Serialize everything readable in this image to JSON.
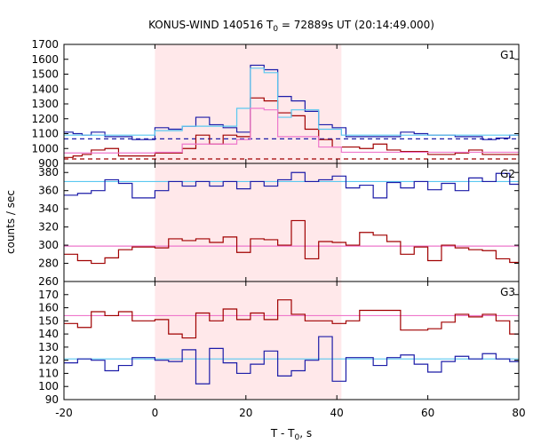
{
  "chart_data": {
    "type": "line",
    "title": {
      "main": "KONUS-WIND 140516 T",
      "sub": "0",
      "tail": " = 72889s UT (20:14:49.000)"
    },
    "xlabel": {
      "main": "T - T",
      "sub": "0",
      "tail": ", s"
    },
    "ylabel": "counts / sec",
    "xlim": [
      -20,
      80
    ],
    "x_ticks": [
      "-20",
      "0",
      "20",
      "40",
      "60",
      "80"
    ],
    "x_tick_values": [
      -20,
      0,
      20,
      40,
      60,
      80
    ],
    "shaded_interval": [
      0,
      41
    ],
    "colors": {
      "red": "#a00000",
      "blue": "#1c1ca8",
      "light_blue": "#5ac8f0",
      "pink": "#ee77cc",
      "shade": "#ffe8ea"
    },
    "panels": [
      {
        "label": "G1",
        "ylim": [
          900,
          1700
        ],
        "y_ticks": [
          "1700",
          "1600",
          "1500",
          "1400",
          "1300",
          "1200",
          "1100",
          "1000",
          "900"
        ],
        "y_tick_values": [
          1700,
          1600,
          1500,
          1400,
          1300,
          1200,
          1100,
          1000,
          900
        ],
        "series": [
          {
            "color": "blue",
            "x": [
              -20,
              -18,
              -16,
              -14,
              -11,
              -8,
              -5,
              0,
              3,
              6,
              9,
              12,
              15,
              18,
              21,
              24,
              27,
              30,
              33,
              36,
              39,
              42,
              45,
              48,
              51,
              54,
              57,
              60,
              63,
              66,
              69,
              72,
              75,
              78,
              80
            ],
            "y": [
              1110,
              1100,
              1090,
              1110,
              1080,
              1080,
              1060,
              1140,
              1130,
              1150,
              1210,
              1160,
              1140,
              1110,
              1560,
              1530,
              1350,
              1320,
              1250,
              1160,
              1140,
              1080,
              1080,
              1080,
              1080,
              1110,
              1100,
              1090,
              1090,
              1080,
              1080,
              1060,
              1070,
              1090,
              1090
            ]
          },
          {
            "color": "red",
            "x": [
              -20,
              -18,
              -16,
              -14,
              -11,
              -8,
              -5,
              0,
              3,
              6,
              9,
              12,
              15,
              18,
              21,
              24,
              27,
              30,
              33,
              36,
              39,
              42,
              45,
              48,
              51,
              54,
              57,
              60,
              63,
              66,
              69,
              72,
              75,
              78,
              80
            ],
            "y": [
              940,
              950,
              960,
              990,
              1000,
              950,
              950,
              970,
              970,
              1000,
              1090,
              1030,
              1090,
              1080,
              1340,
              1320,
              1240,
              1220,
              1130,
              1060,
              1010,
              1010,
              1000,
              1030,
              990,
              980,
              980,
              960,
              960,
              970,
              990,
              960,
              960,
              960,
              960
            ]
          },
          {
            "color": "light_blue",
            "x": [
              -20,
              0,
              6,
              18,
              21,
              24,
              27,
              30,
              36,
              41,
              80
            ],
            "y": [
              1090,
              1120,
              1150,
              1270,
              1540,
              1510,
              1210,
              1260,
              1130,
              1090,
              1090
            ]
          },
          {
            "color": "pink",
            "x": [
              -20,
              0,
              6,
              18,
              21,
              24,
              27,
              30,
              36,
              41,
              80
            ],
            "y": [
              970,
              975,
              1030,
              1060,
              1270,
              1260,
              1080,
              1080,
              1010,
              975,
              975
            ]
          }
        ],
        "backgrounds": [
          {
            "color": "blue",
            "y": 1065,
            "dashed": true
          },
          {
            "color": "red",
            "y": 930,
            "dashed": true
          }
        ]
      },
      {
        "label": "G2",
        "ylim": [
          260,
          390
        ],
        "y_ticks": [
          "380",
          "360",
          "340",
          "320",
          "300",
          "280",
          "260"
        ],
        "y_tick_values": [
          380,
          360,
          340,
          320,
          300,
          280,
          260
        ],
        "series": [
          {
            "color": "blue",
            "x": [
              -20,
              -17,
              -14,
              -11,
              -8,
              -5,
              0,
              3,
              6,
              9,
              12,
              15,
              18,
              21,
              24,
              27,
              30,
              33,
              36,
              39,
              42,
              45,
              48,
              51,
              54,
              57,
              60,
              63,
              66,
              69,
              72,
              75,
              78,
              80
            ],
            "y": [
              355,
              357,
              360,
              372,
              368,
              352,
              360,
              370,
              365,
              370,
              365,
              370,
              362,
              370,
              365,
              372,
              380,
              370,
              372,
              376,
              363,
              366,
              352,
              369,
              363,
              370,
              361,
              368,
              360,
              374,
              370,
              379,
              367,
              367
            ]
          },
          {
            "color": "red",
            "x": [
              -20,
              -17,
              -14,
              -11,
              -8,
              -5,
              0,
              3,
              6,
              9,
              12,
              15,
              18,
              21,
              24,
              27,
              30,
              33,
              36,
              39,
              42,
              45,
              48,
              51,
              54,
              57,
              60,
              63,
              66,
              69,
              72,
              75,
              78,
              80
            ],
            "y": [
              290,
              283,
              280,
              286,
              295,
              298,
              297,
              307,
              305,
              307,
              303,
              309,
              292,
              307,
              306,
              300,
              327,
              285,
              304,
              303,
              300,
              314,
              311,
              304,
              290,
              298,
              283,
              300,
              297,
              295,
              294,
              285,
              281,
              281
            ]
          }
        ],
        "backgrounds": [
          {
            "color": "light_blue",
            "y": 370,
            "dashed": false
          },
          {
            "color": "pink",
            "y": 299,
            "dashed": false
          }
        ]
      },
      {
        "label": "G3",
        "ylim": [
          90,
          180
        ],
        "y_ticks": [
          "170",
          "160",
          "150",
          "140",
          "130",
          "120",
          "110",
          "100",
          "90"
        ],
        "y_tick_values": [
          170,
          160,
          150,
          140,
          130,
          120,
          110,
          100,
          90
        ],
        "series": [
          {
            "color": "red",
            "x": [
              -20,
              -17,
              -14,
              -11,
              -8,
              -5,
              0,
              3,
              6,
              9,
              12,
              15,
              18,
              21,
              24,
              27,
              30,
              33,
              36,
              39,
              42,
              45,
              48,
              51,
              54,
              57,
              60,
              63,
              66,
              69,
              72,
              75,
              78,
              80
            ],
            "y": [
              148,
              145,
              157,
              154,
              157,
              150,
              151,
              140,
              137,
              156,
              150,
              159,
              151,
              156,
              151,
              166,
              155,
              150,
              150,
              148,
              150,
              158,
              158,
              158,
              143,
              143,
              144,
              149,
              155,
              153,
              155,
              150,
              140,
              140
            ]
          },
          {
            "color": "blue",
            "x": [
              -20,
              -17,
              -14,
              -11,
              -8,
              -5,
              0,
              3,
              6,
              9,
              12,
              15,
              18,
              21,
              24,
              27,
              30,
              33,
              36,
              39,
              42,
              45,
              48,
              51,
              54,
              57,
              60,
              63,
              66,
              69,
              72,
              75,
              78,
              80
            ],
            "y": [
              118,
              121,
              120,
              112,
              116,
              122,
              120,
              119,
              128,
              102,
              129,
              118,
              110,
              117,
              127,
              108,
              112,
              120,
              138,
              104,
              122,
              122,
              116,
              122,
              124,
              117,
              111,
              119,
              123,
              121,
              125,
              121,
              119,
              119
            ]
          }
        ],
        "backgrounds": [
          {
            "color": "pink",
            "y": 154,
            "dashed": false
          },
          {
            "color": "light_blue",
            "y": 121,
            "dashed": false
          }
        ]
      }
    ]
  }
}
